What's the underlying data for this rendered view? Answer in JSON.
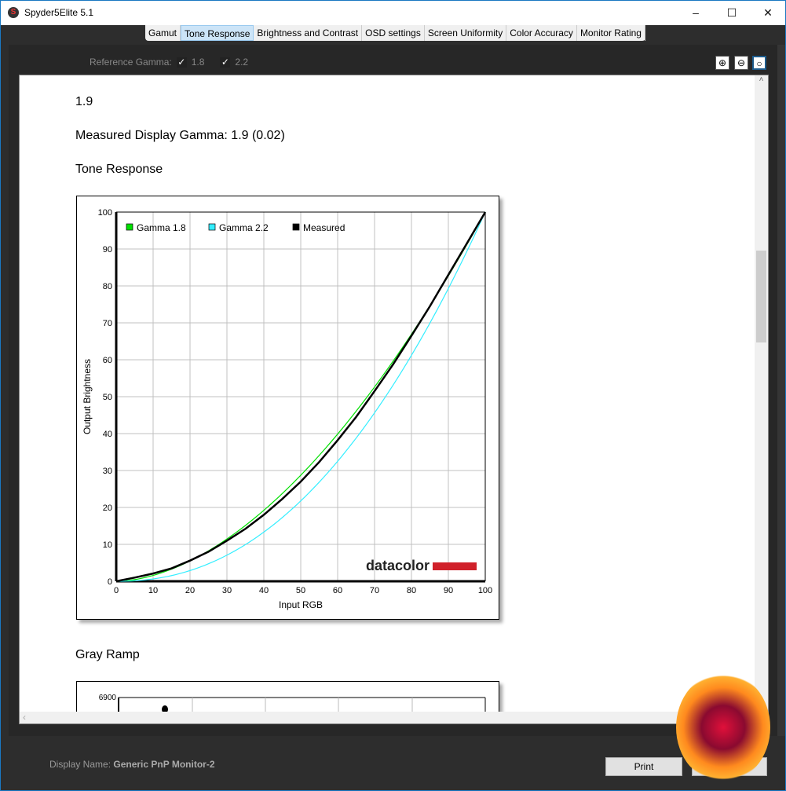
{
  "window": {
    "title": "Spyder5Elite 5.1",
    "icon": "spyder-logo-icon"
  },
  "tabs": [
    "Gamut",
    "Tone Response",
    "Brightness and Contrast",
    "OSD settings",
    "Screen Uniformity",
    "Color Accuracy",
    "Monitor Rating"
  ],
  "active_tab": "Tone Response",
  "reference_gamma": {
    "label": "Reference Gamma:",
    "options": [
      {
        "value": "1.8",
        "checked": true
      },
      {
        "value": "2.2",
        "checked": true
      }
    ]
  },
  "content": {
    "gamma_value": "1.9",
    "measured": "Measured Display Gamma: 1.9 (0.02)",
    "section1": "Tone Response",
    "section2": "Gray Ramp",
    "gray_ramp_top_tick": "6900"
  },
  "chart_data": {
    "type": "line",
    "xlabel": "Input RGB",
    "ylabel": "Output Brightness",
    "xlim": [
      0,
      100
    ],
    "ylim": [
      0,
      100
    ],
    "xticks": [
      0,
      10,
      20,
      30,
      40,
      50,
      60,
      70,
      80,
      90,
      100
    ],
    "yticks": [
      0,
      10,
      20,
      30,
      40,
      50,
      60,
      70,
      80,
      90,
      100
    ],
    "grid": true,
    "legend": "top-left",
    "watermark": "datacolor",
    "x": [
      0,
      5,
      10,
      15,
      20,
      25,
      30,
      35,
      40,
      45,
      50,
      55,
      60,
      65,
      70,
      75,
      80,
      85,
      90,
      95,
      100
    ],
    "series": [
      {
        "name": "Gamma 1.8",
        "gamma": 1.8,
        "color": "#00e000"
      },
      {
        "name": "Gamma 2.2",
        "gamma": 2.2,
        "color": "#33eeff"
      },
      {
        "name": "Measured",
        "color": "#000000",
        "values": [
          0,
          1,
          2.1,
          3.5,
          5.6,
          8,
          11,
          14.2,
          18,
          22.3,
          27,
          32.3,
          38.2,
          44.5,
          51.5,
          58.7,
          66.5,
          74.5,
          83,
          91.5,
          100
        ]
      }
    ]
  },
  "footer": {
    "display_label": "Display Name:",
    "display_name": "Generic PnP Monitor-2",
    "print": "Print"
  },
  "colors": {
    "accent": "#cce4f7",
    "datacolor_red": "#d0202a"
  }
}
